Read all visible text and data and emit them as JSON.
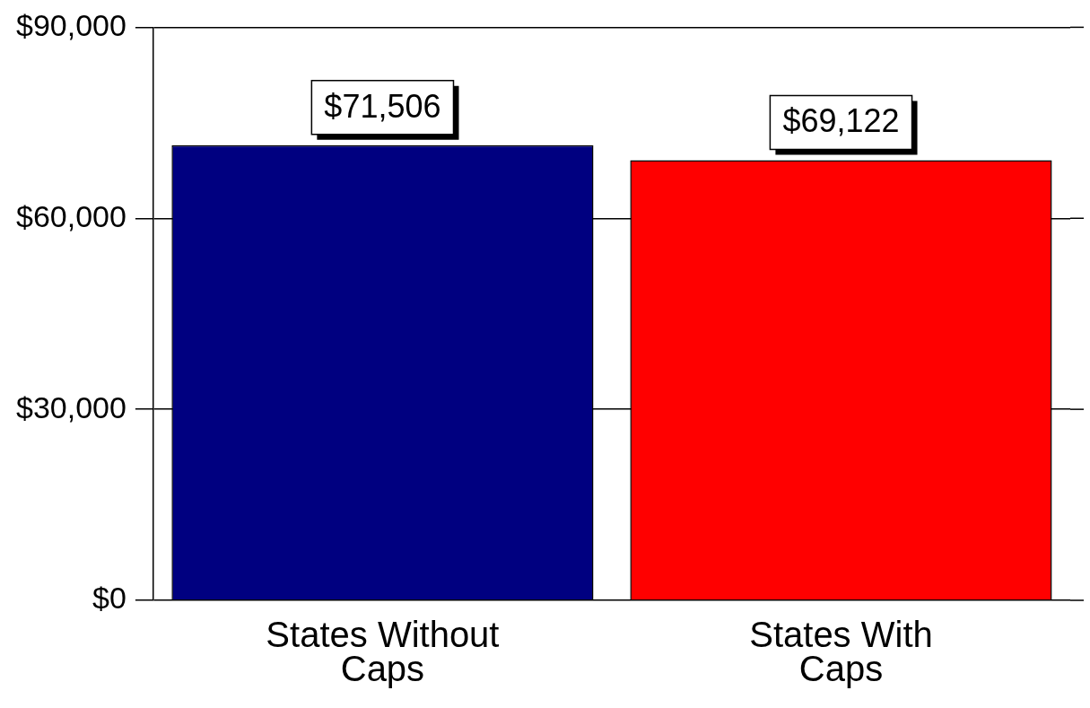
{
  "chart_data": {
    "type": "bar",
    "categories": [
      "States Without Caps",
      "States With Caps"
    ],
    "values": [
      71506,
      69122
    ],
    "colors": [
      "#000080",
      "#ff0000"
    ],
    "value_labels": [
      "$71,506",
      "$69,122"
    ],
    "ylim": [
      0,
      90000
    ],
    "yticks": [
      {
        "value": 0,
        "label": "$0"
      },
      {
        "value": 30000,
        "label": "$30,000"
      },
      {
        "value": 60000,
        "label": "$60,000"
      },
      {
        "value": 90000,
        "label": "$90,000"
      }
    ],
    "grid": "y",
    "legend": false
  }
}
